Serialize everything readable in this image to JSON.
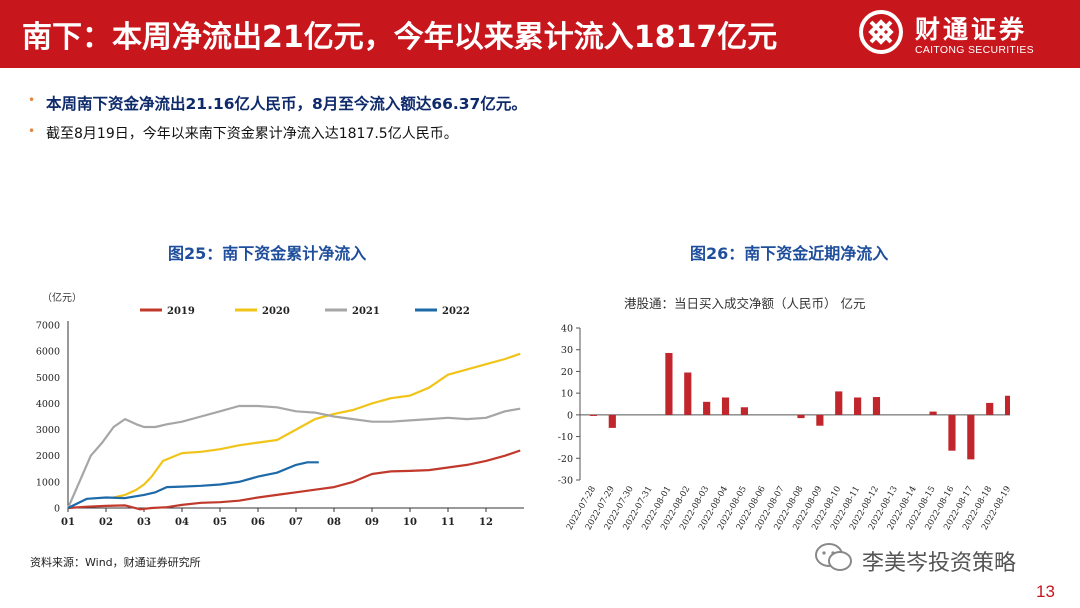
{
  "header": {
    "title": "南下：本周净流出21亿元，今年以来累计流入1817亿元",
    "logo_name": "财通证券",
    "logo_en": "CAITONG SECURITIES"
  },
  "bullets": [
    "本周南下资金净流出21.16亿人民币，8月至今流入额达66.37亿元。",
    "截至8月19日，今年以来南下资金累计净流入达1817.5亿人民币。"
  ],
  "chart_data": [
    {
      "type": "line",
      "title": "图25：南下资金累计净流入",
      "ylabel": "（亿元）",
      "ylim": [
        0,
        7000
      ],
      "yticks": [
        0,
        1000,
        2000,
        3000,
        4000,
        5000,
        6000,
        7000
      ],
      "categories": [
        "01",
        "02",
        "03",
        "04",
        "05",
        "06",
        "07",
        "08",
        "09",
        "10",
        "11",
        "12"
      ],
      "series": [
        {
          "name": "2019",
          "color": "#c0392b",
          "x": [
            1,
            1.5,
            2,
            2.5,
            2.9,
            3.2,
            3.6,
            4,
            4.5,
            5,
            5.5,
            6,
            6.5,
            7,
            7.5,
            8,
            8.5,
            9,
            9.5,
            10,
            10.5,
            11,
            11.5,
            12,
            12.5,
            12.9
          ],
          "values": [
            0,
            50,
            80,
            100,
            -50,
            0,
            30,
            120,
            200,
            220,
            280,
            400,
            500,
            600,
            700,
            800,
            1000,
            1300,
            1400,
            1420,
            1450,
            1550,
            1650,
            1800,
            2000,
            2200
          ]
        },
        {
          "name": "2020",
          "color": "#f0c419",
          "x": [
            2.2,
            2.5,
            2.8,
            3,
            3.2,
            3.5,
            4,
            4.5,
            5,
            5.5,
            6,
            6.5,
            7,
            7.5,
            8,
            8.5,
            9,
            9.5,
            10,
            10.5,
            11,
            11.5,
            12,
            12.5,
            12.9
          ],
          "values": [
            400,
            500,
            700,
            900,
            1200,
            1800,
            2100,
            2150,
            2250,
            2400,
            2500,
            2600,
            3000,
            3400,
            3600,
            3750,
            4000,
            4200,
            4300,
            4600,
            5100,
            5300,
            5500,
            5700,
            5900
          ]
        },
        {
          "name": "2021",
          "color": "#a6a6a6",
          "x": [
            1,
            1.3,
            1.6,
            1.9,
            2.2,
            2.5,
            2.8,
            3,
            3.3,
            3.6,
            4,
            4.5,
            5,
            5.5,
            6,
            6.5,
            7,
            7.5,
            8,
            8.5,
            9,
            9.5,
            10,
            10.5,
            11,
            11.5,
            12,
            12.5,
            12.9
          ],
          "values": [
            0,
            1000,
            2000,
            2500,
            3100,
            3400,
            3200,
            3100,
            3100,
            3200,
            3300,
            3500,
            3700,
            3900,
            3900,
            3850,
            3700,
            3650,
            3500,
            3400,
            3300,
            3300,
            3350,
            3400,
            3450,
            3400,
            3450,
            3700,
            3800
          ]
        },
        {
          "name": "2022",
          "color": "#1e6aa8",
          "x": [
            1,
            1.5,
            2,
            2.5,
            3,
            3.3,
            3.6,
            4,
            4.5,
            5,
            5.5,
            6,
            6.5,
            7,
            7.3,
            7.6
          ],
          "values": [
            0,
            350,
            400,
            380,
            500,
            600,
            800,
            820,
            850,
            900,
            1000,
            1200,
            1350,
            1650,
            1750,
            1750
          ]
        }
      ]
    },
    {
      "type": "bar",
      "title": "图26：南下资金近期净流入",
      "subtitle": "港股通：当日买入成交净额（人民币） 亿元",
      "ylim": [
        -30,
        40
      ],
      "yticks": [
        40,
        30,
        20,
        10,
        0,
        -10,
        -20,
        -30
      ],
      "categories": [
        "2022-07-28",
        "2022-07-29",
        "2022-07-30",
        "2022-07-31",
        "2022-08-01",
        "2022-08-02",
        "2022-08-03",
        "2022-08-04",
        "2022-08-05",
        "2022-08-06",
        "2022-08-07",
        "2022-08-08",
        "2022-08-09",
        "2022-08-10",
        "2022-08-11",
        "2022-08-12",
        "2022-08-13",
        "2022-08-14",
        "2022-08-15",
        "2022-08-16",
        "2022-08-17",
        "2022-08-18",
        "2022-08-19"
      ],
      "values": [
        -0.5,
        -6,
        0,
        0,
        28.5,
        19.5,
        6,
        8,
        3.5,
        0,
        0,
        -1.5,
        -5,
        10.8,
        8,
        8.2,
        0,
        0,
        1.5,
        -16.5,
        -20.5,
        5.5,
        8.8
      ],
      "bar_color": "#c0262c"
    }
  ],
  "source": "资料来源：Wind，财通证券研究所",
  "watermark": "李美岑投资策略",
  "page_number": "13"
}
